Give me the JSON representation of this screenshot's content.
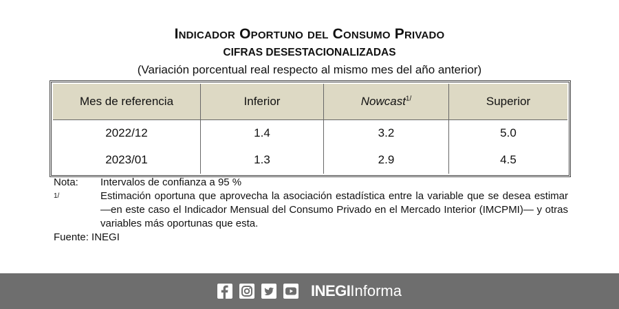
{
  "header": {
    "title": "Indicador Oportuno del Consumo Privado",
    "subtitle": "CIFRAS DESESTACIONALIZADAS",
    "caption": "(Variación porcentual real respecto al mismo mes del año anterior)"
  },
  "table": {
    "columns": [
      "Mes de referencia",
      "Inferior",
      "Nowcast",
      "Superior"
    ],
    "nowcast_note_mark": "1/",
    "rows": [
      [
        "2022/12",
        "1.4",
        "3.2",
        "5.0"
      ],
      [
        "2023/01",
        "1.3",
        "2.9",
        "4.5"
      ]
    ]
  },
  "notes": {
    "nota_label": "Nota:",
    "nota_text": "Intervalos de confianza a 95 %",
    "footnote_label": "1/",
    "footnote_text": "Estimación oportuna que aprovecha la asociación estadística entre la variable que se desea estimar —en este caso el Indicador Mensual del Consumo Privado en el Mercado Interior (IMCPMI)— y otras variables más oportunas que esta.",
    "source": "Fuente: INEGI"
  },
  "footer": {
    "brand_bold": "INEGI",
    "brand_rest": "Informa"
  }
}
